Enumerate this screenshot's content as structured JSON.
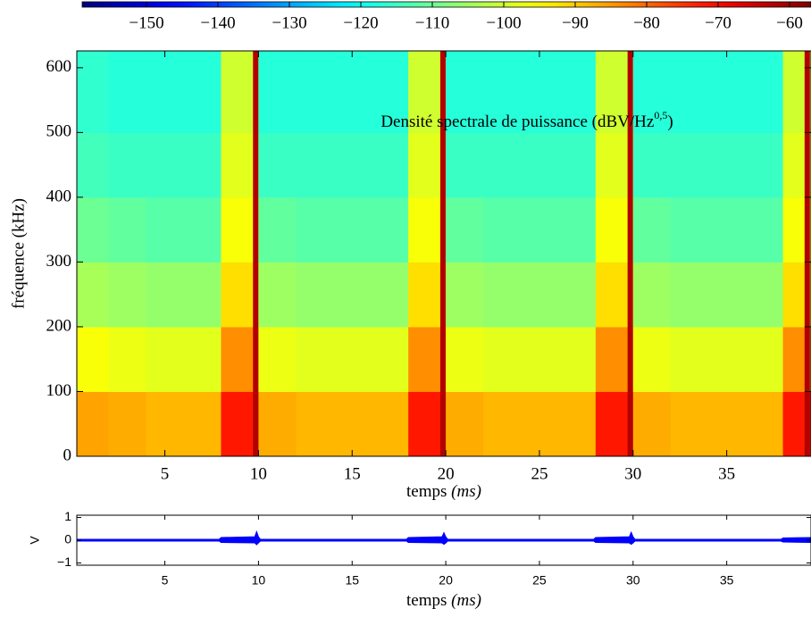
{
  "chart_data": [
    {
      "type": "heatmap",
      "title": "Densité spectrale de puissance (dBV/Hz",
      "title_sup": "0,5",
      "title_end": ")",
      "xlabel": "temps",
      "xlabel_unit": "(ms)",
      "ylabel": "fréquence (kHz)",
      "xlim": [
        0.3,
        39.5
      ],
      "xticks": [
        5,
        10,
        15,
        20,
        25,
        30,
        35
      ],
      "ylim": [
        0,
        626
      ],
      "yticks": [
        0,
        100,
        200,
        300,
        400,
        500,
        600
      ],
      "clim": [
        -159,
        -57
      ],
      "cticks": [
        {
          "value": -150,
          "label": "−150"
        },
        {
          "value": -140,
          "label": "−140"
        },
        {
          "value": -130,
          "label": "−130"
        },
        {
          "value": -120,
          "label": "−120"
        },
        {
          "value": -110,
          "label": "−110"
        },
        {
          "value": -100,
          "label": "−100"
        },
        {
          "value": -90,
          "label": "−90"
        },
        {
          "value": -80,
          "label": "−80"
        },
        {
          "value": -70,
          "label": "−70"
        },
        {
          "value": -60,
          "label": "−60"
        }
      ],
      "colormap": "jet",
      "xbins": [
        0.3,
        2,
        4,
        6,
        8,
        10,
        12,
        14,
        16,
        18,
        20,
        22,
        24,
        26,
        28,
        30,
        32,
        34,
        36,
        38,
        39.5
      ],
      "ybins": [
        0,
        100,
        200,
        300,
        400,
        500,
        626
      ],
      "z": [
        [
          -86,
          -87,
          -88,
          -88,
          -72,
          -87,
          -88,
          -88,
          -88,
          -72,
          -87,
          -88,
          -88,
          -88,
          -72,
          -87,
          -88,
          -88,
          -88,
          -72
        ],
        [
          -96,
          -97,
          -98,
          -98,
          -84,
          -97,
          -98,
          -98,
          -98,
          -84,
          -97,
          -98,
          -98,
          -98,
          -84,
          -97,
          -98,
          -98,
          -98,
          -84
        ],
        [
          -104,
          -105,
          -106,
          -106,
          -92,
          -105,
          -106,
          -106,
          -106,
          -92,
          -105,
          -106,
          -106,
          -106,
          -92,
          -105,
          -106,
          -106,
          -106,
          -92
        ],
        [
          -110,
          -111,
          -112,
          -112,
          -96,
          -111,
          -112,
          -112,
          -112,
          -96,
          -111,
          -112,
          -112,
          -112,
          -96,
          -111,
          -112,
          -112,
          -112,
          -96
        ],
        [
          -114,
          -115,
          -115,
          -115,
          -98,
          -115,
          -115,
          -115,
          -115,
          -98,
          -115,
          -115,
          -115,
          -115,
          -98,
          -115,
          -115,
          -115,
          -115,
          -98
        ],
        [
          -116,
          -117,
          -117,
          -117,
          -100,
          -117,
          -117,
          -117,
          -117,
          -100,
          -117,
          -117,
          -117,
          -117,
          -100,
          -117,
          -117,
          -117,
          -117,
          -100
        ]
      ],
      "pulses": {
        "x": [
          9.85,
          19.85,
          29.85,
          39.3
        ],
        "value": -62
      }
    },
    {
      "type": "area",
      "xlabel": "temps",
      "xlabel_unit": "(ms)",
      "ylabel": "V",
      "xlim": [
        0.3,
        39.5
      ],
      "xticks": [
        5,
        10,
        15,
        20,
        25,
        30,
        35
      ],
      "ylim": [
        -1.1,
        1.1
      ],
      "yticks": [
        1,
        0,
        {
          "value": -1,
          "label": "−1"
        }
      ],
      "x": [
        0.3,
        7.9,
        8.0,
        9.8,
        9.9,
        10.0,
        10.1,
        17.9,
        18.0,
        19.8,
        19.9,
        20.0,
        20.1,
        27.9,
        28.0,
        29.8,
        29.9,
        30.0,
        30.1,
        37.9,
        38.0,
        39.5
      ],
      "series": [
        {
          "name": "upper",
          "color": "#0000ff",
          "values": [
            0.04,
            0.04,
            0.12,
            0.15,
            0.38,
            0.15,
            0.04,
            0.04,
            0.12,
            0.15,
            0.33,
            0.15,
            0.04,
            0.04,
            0.12,
            0.15,
            0.35,
            0.15,
            0.04,
            0.04,
            0.1,
            0.12
          ]
        },
        {
          "name": "lower",
          "color": "#0000ff",
          "values": [
            -0.04,
            -0.04,
            -0.1,
            -0.12,
            -0.2,
            -0.12,
            -0.04,
            -0.04,
            -0.1,
            -0.12,
            -0.18,
            -0.12,
            -0.04,
            -0.04,
            -0.1,
            -0.12,
            -0.18,
            -0.12,
            -0.04,
            -0.04,
            -0.08,
            -0.1
          ]
        }
      ]
    }
  ]
}
